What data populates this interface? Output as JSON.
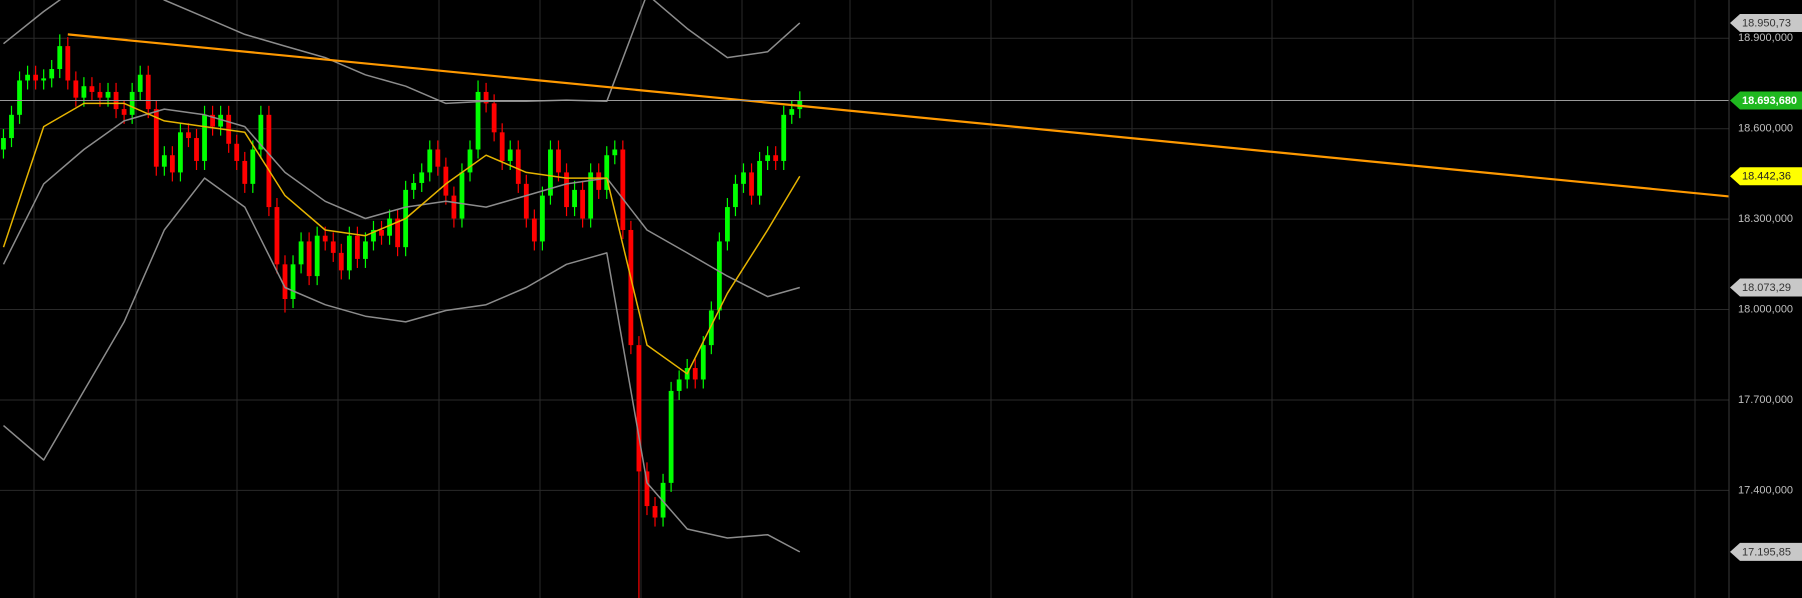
{
  "chart_data": {
    "type": "candlestick",
    "open": [
      18531,
      18569,
      18646,
      18760,
      18779,
      18760,
      18767,
      18798,
      18874,
      18760,
      18703,
      18741,
      18722,
      18703,
      18722,
      18665,
      18646,
      18722,
      18779,
      18665,
      18474,
      18512,
      18455,
      18588,
      18569,
      18493,
      18646,
      18607,
      18646,
      18550,
      18493,
      18417,
      18531,
      18646,
      18340,
      18150,
      18035,
      18150,
      18226,
      18111,
      18245,
      18226,
      18188,
      18130,
      18245,
      18168,
      18226,
      18264,
      18245,
      18302,
      18207,
      18397,
      18420,
      18455,
      18531,
      18474,
      18378,
      18302,
      18455,
      18531,
      18722,
      18684,
      18588,
      18493,
      18531,
      18417,
      18302,
      18226,
      18378,
      18531,
      18455,
      18340,
      18397,
      18302,
      18455,
      18397,
      18512,
      18531,
      18264,
      17882,
      17463,
      17348,
      17310,
      17425,
      17730,
      17768,
      17806,
      17768,
      17882,
      17997,
      18226,
      18340,
      18417,
      18455,
      18378,
      18493,
      18512,
      18493,
      18646,
      18665
    ],
    "high": [
      18599,
      18676,
      18790,
      18809,
      18809,
      18797,
      18828,
      18913,
      18904,
      18790,
      18771,
      18771,
      18752,
      18752,
      18752,
      18695,
      18752,
      18809,
      18809,
      18695,
      18542,
      18542,
      18618,
      18618,
      18599,
      18676,
      18676,
      18676,
      18676,
      18580,
      18523,
      18561,
      18676,
      18676,
      18370,
      18180,
      18180,
      18256,
      18256,
      18275,
      18275,
      18256,
      18218,
      18275,
      18275,
      18256,
      18294,
      18294,
      18332,
      18332,
      18427,
      18450,
      18485,
      18561,
      18561,
      18504,
      18408,
      18485,
      18561,
      18760,
      18752,
      18714,
      18618,
      18561,
      18561,
      18447,
      18332,
      18408,
      18561,
      18561,
      18485,
      18427,
      18427,
      18485,
      18485,
      18542,
      18561,
      18561,
      18294,
      17912,
      17493,
      17378,
      17455,
      17760,
      17798,
      17836,
      17836,
      17912,
      18027,
      18256,
      18370,
      18447,
      18485,
      18485,
      18523,
      18542,
      18542,
      18676,
      18695,
      18724
    ],
    "low": [
      18501,
      18539,
      18616,
      18730,
      18730,
      18730,
      18737,
      18768,
      18730,
      18673,
      18673,
      18692,
      18673,
      18673,
      18635,
      18616,
      18616,
      18692,
      18635,
      18444,
      18444,
      18425,
      18425,
      18539,
      18463,
      18463,
      18577,
      18577,
      18520,
      18463,
      18387,
      18387,
      18501,
      18310,
      18120,
      17990,
      18005,
      18120,
      18081,
      18081,
      18196,
      18158,
      18100,
      18100,
      18138,
      18138,
      18196,
      18215,
      18215,
      18177,
      18177,
      18367,
      18390,
      18425,
      18444,
      18348,
      18272,
      18272,
      18425,
      18501,
      18654,
      18558,
      18463,
      18463,
      18387,
      18272,
      18196,
      18196,
      18348,
      18425,
      18310,
      18310,
      18272,
      18272,
      18367,
      18367,
      18482,
      18234,
      17852,
      17043,
      17318,
      17280,
      17280,
      17395,
      17700,
      17738,
      17738,
      17738,
      17852,
      17967,
      18196,
      18310,
      18387,
      18348,
      18348,
      18463,
      18463,
      18463,
      18616,
      18635
    ],
    "close": [
      18569,
      18646,
      18760,
      18779,
      18760,
      18767,
      18798,
      18874,
      18760,
      18703,
      18741,
      18722,
      18703,
      18722,
      18665,
      18646,
      18722,
      18779,
      18665,
      18474,
      18512,
      18455,
      18588,
      18569,
      18493,
      18646,
      18607,
      18646,
      18550,
      18493,
      18417,
      18531,
      18646,
      18340,
      18150,
      18035,
      18150,
      18226,
      18111,
      18245,
      18226,
      18188,
      18130,
      18245,
      18168,
      18226,
      18264,
      18245,
      18302,
      18207,
      18397,
      18420,
      18455,
      18531,
      18474,
      18378,
      18302,
      18455,
      18531,
      18722,
      18684,
      18588,
      18493,
      18531,
      18417,
      18302,
      18226,
      18378,
      18531,
      18455,
      18340,
      18397,
      18302,
      18455,
      18397,
      18512,
      18531,
      18264,
      17882,
      17463,
      17348,
      17310,
      17425,
      17730,
      17768,
      17806,
      17768,
      17882,
      17997,
      18226,
      18340,
      18417,
      18455,
      18378,
      18493,
      18512,
      18493,
      18646,
      18665,
      18694
    ],
    "up_color": "#00ff00",
    "down_color": "#ff0000",
    "lines": [
      {
        "color": "#8c8c8c",
        "x": [
          0,
          5,
          10,
          15,
          20,
          25,
          30,
          35,
          40,
          45,
          50,
          55,
          60,
          65,
          70,
          75,
          80,
          85,
          90,
          95,
          99
        ],
        "values": [
          18882,
          18989,
          19084,
          19103,
          19027,
          18970,
          18913,
          18874,
          18836,
          18779,
          18741,
          18684,
          18691,
          18691,
          18695,
          18691,
          19046,
          18932,
          18836,
          18855,
          18951
        ]
      },
      {
        "color": "#8c8c8c",
        "x": [
          0,
          5,
          10,
          15,
          20,
          25,
          30,
          35,
          40,
          45,
          50,
          55,
          60,
          65,
          70,
          75,
          80,
          85,
          90,
          95,
          99
        ],
        "values": [
          18150,
          18417,
          18531,
          18626,
          18665,
          18646,
          18607,
          18455,
          18359,
          18302,
          18340,
          18359,
          18340,
          18378,
          18417,
          18436,
          18264,
          18188,
          18111,
          18043,
          18073
        ]
      },
      {
        "color": "#8c8c8c",
        "x": [
          0,
          5,
          10,
          15,
          20,
          25,
          30,
          35,
          40,
          45,
          50,
          55,
          60,
          65,
          70,
          75,
          80,
          85,
          90,
          95,
          99
        ],
        "values": [
          17615,
          17501,
          17730,
          17959,
          18264,
          18436,
          18340,
          18073,
          18016,
          17978,
          17959,
          17997,
          18016,
          18073,
          18150,
          18188,
          17425,
          17272,
          17242,
          17253,
          17196
        ]
      },
      {
        "color": "#e6b400",
        "x": [
          0,
          5,
          10,
          15,
          20,
          25,
          30,
          35,
          40,
          45,
          50,
          55,
          60,
          65,
          70,
          75,
          80,
          85,
          90,
          95,
          99
        ],
        "values": [
          18207,
          18607,
          18684,
          18684,
          18626,
          18607,
          18588,
          18378,
          18264,
          18245,
          18302,
          18417,
          18512,
          18455,
          18436,
          18436,
          17882,
          17787,
          18054,
          18264,
          18442
        ]
      },
      {
        "color": "#ff9900",
        "x": [
          8,
          215
        ],
        "values": [
          18913,
          18374
        ]
      }
    ],
    "ylim": [
      17043,
      19027
    ],
    "yticks": [
      {
        "value": 17400,
        "label": "17.400,000"
      },
      {
        "value": 17700,
        "label": "17.700,000"
      },
      {
        "value": 18000,
        "label": "18.000,000"
      },
      {
        "value": 18300,
        "label": "18.300,000"
      },
      {
        "value": 18600,
        "label": "18.600,000"
      },
      {
        "value": 18900,
        "label": "18.900,000"
      }
    ],
    "grid": true,
    "price_markers": [
      {
        "value": 18950.73,
        "label": "18.950,73",
        "color": "#c8c8c8",
        "text_color": "#333333"
      },
      {
        "value": 18442.36,
        "label": "18.442,36",
        "color": "#ffff00",
        "text_color": "#222222"
      },
      {
        "value": 18073.29,
        "label": "18.073,29",
        "color": "#c8c8c8",
        "text_color": "#333333"
      },
      {
        "value": 17195.85,
        "label": "17.195,85",
        "color": "#c8c8c8",
        "text_color": "#333333"
      },
      {
        "value": 18693.68,
        "label": "18.693,680",
        "color": "#1fb81f",
        "text_color": "#ffffff"
      }
    ]
  }
}
